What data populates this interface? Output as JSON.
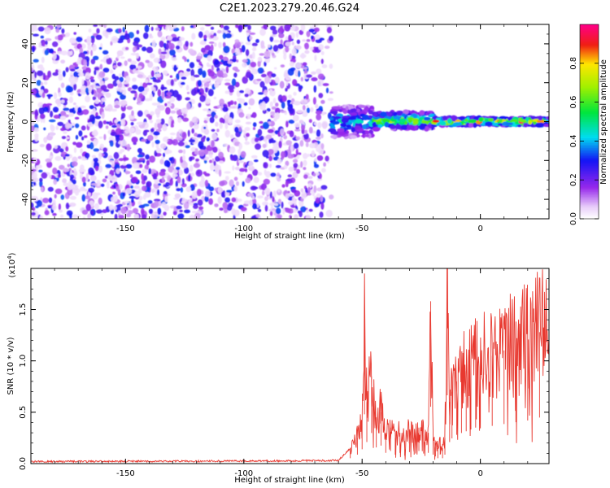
{
  "title": "C2E1.2023.279.20.46.G24",
  "chart_data": [
    {
      "type": "heatmap",
      "xlabel": "Height of straight line (km)",
      "ylabel": "Frequency (Hz)",
      "xlim": [
        -190,
        29
      ],
      "ylim": [
        -50,
        50
      ],
      "x_ticks": [
        -150,
        -100,
        -50,
        0
      ],
      "y_ticks": [
        -40,
        -20,
        0,
        20,
        40
      ],
      "colorbar": {
        "label": "Normalized spectral amplitude",
        "range": [
          0,
          1
        ],
        "ticks": [
          "0.0",
          "0.2",
          "0.4",
          "0.6",
          "0.8"
        ],
        "colormap": "rainbow (white → violet → blue → cyan → green → yellow → red → magenta)"
      },
      "regions": [
        {
          "description": "diffuse noise",
          "x_range": [
            -190,
            -63
          ],
          "freq_range": [
            -50,
            50
          ],
          "amplitude": 0.15
        },
        {
          "description": "signal onset, widening tone",
          "x_range": [
            -63,
            -45
          ],
          "freq_range": [
            -8,
            8
          ],
          "amplitude": 0.45
        },
        {
          "description": "narrowing signal tone",
          "x_range": [
            -45,
            -20
          ],
          "freq_range": [
            -4,
            5
          ],
          "amplitude": 0.65
        },
        {
          "description": "steady signal tone",
          "x_range": [
            -20,
            29
          ],
          "freq_range": [
            -2,
            2
          ],
          "amplitude": 0.85
        }
      ],
      "grid": false
    },
    {
      "type": "line",
      "xlabel": "Height of straight line (km)",
      "ylabel": "SNR (10 * v/v)",
      "y_scale_label": "(x10",
      "y_scale_exp": "4",
      "y_scale_close": ")",
      "xlim": [
        -190,
        29
      ],
      "ylim": [
        0,
        19000
      ],
      "x_ticks": [
        -150,
        -100,
        -50,
        0
      ],
      "y_ticks": [
        "0.0",
        "0.5",
        "1.0",
        "1.5"
      ],
      "series_color": "#e8382f",
      "grid": false,
      "series": [
        {
          "x": [
            -190,
            -150,
            -100,
            -60,
            -55,
            -52,
            -50,
            -49,
            -48,
            -46,
            -44,
            -42,
            -40,
            -38,
            -36,
            -34,
            -32,
            -30,
            -28,
            -26,
            -24,
            -22,
            -21,
            -20,
            -19,
            -18,
            -17,
            -16,
            -15,
            -14,
            -13,
            -12,
            -10,
            -8,
            -6,
            -4,
            -2,
            0,
            5,
            10,
            15,
            20,
            25,
            29
          ],
          "y": [
            200,
            220,
            250,
            300,
            1500,
            2500,
            4000,
            13700,
            6000,
            8500,
            4500,
            5000,
            3000,
            3500,
            2500,
            3000,
            2200,
            3200,
            2500,
            3500,
            2800,
            3000,
            15800,
            2500,
            2000,
            1500,
            2500,
            1500,
            2500,
            19000,
            6000,
            7000,
            8000,
            8500,
            9000,
            9500,
            10000,
            9800,
            10500,
            11000,
            11500,
            12000,
            12800,
            13000
          ]
        }
      ]
    }
  ]
}
